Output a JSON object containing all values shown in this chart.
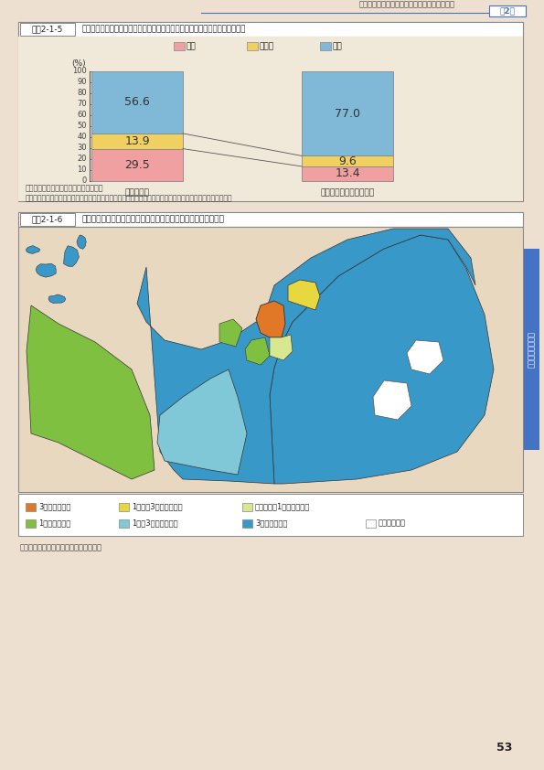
{
  "page_bg": "#ede0d0",
  "chart1_bg": "#f0e8d8",
  "map_bg": "#e8d8c0",
  "chart1_bar_colors": [
    "#f0a0a0",
    "#f0d060",
    "#80b8d8"
  ],
  "chart1_vals1": [
    29.5,
    13.9,
    56.6
  ],
  "chart1_vals2": [
    13.4,
    9.6,
    77.0
  ],
  "chart1_cat1": "県庁所在地",
  "chart1_cat2": "県庁所在地以外の地方圏",
  "chart1_legend_labels": [
    "上昇",
    "横ばい",
    "下落"
  ],
  "chart1_ylabel": "(%)",
  "fig1_label": "図表2-1-5",
  "fig1_title": "地方圏の地域別の地価動向（商業地）（上昇、横ばい、下落の地点数の推移）",
  "chart1_source": "資料：国土交通省「地価公示」より作成",
  "chart1_note": "注：平成２６年地価公示の結果より、地方圏の地域別に上昇、横ばい、下落した地点数の割合を示したもの。",
  "fig2_label": "図表2-1-6",
  "fig2_title": "九州北部の市区町村別地価動向（平成２６年地価公示、商業地）",
  "legend_row1": [
    {
      "label": "3％以上の上昇",
      "color": "#e07828"
    },
    {
      "label": "1％以上3％未満の上昇",
      "color": "#e8d840"
    },
    {
      "label": "横ばい又は1％未満の上昇",
      "color": "#d8e890"
    }
  ],
  "legend_row2": [
    {
      "label": "1％未満の下落",
      "color": "#80c040"
    },
    {
      "label": "1％以3％未満の下落",
      "color": "#80c8d8"
    },
    {
      "label": "3％以上の下落",
      "color": "#3898c8"
    },
    {
      "label": "調査地点なし",
      "color": "#ffffff"
    }
  ],
  "source_bottom": "資料：国土交通省「地価公示」より作成",
  "header_text": "脱デフレから脱出しつつある不動産市場の変化",
  "chapter_text": "第2章",
  "sidebar_text": "土地に関する要因",
  "sidebar_color": "#4472c4",
  "page_number": "53"
}
